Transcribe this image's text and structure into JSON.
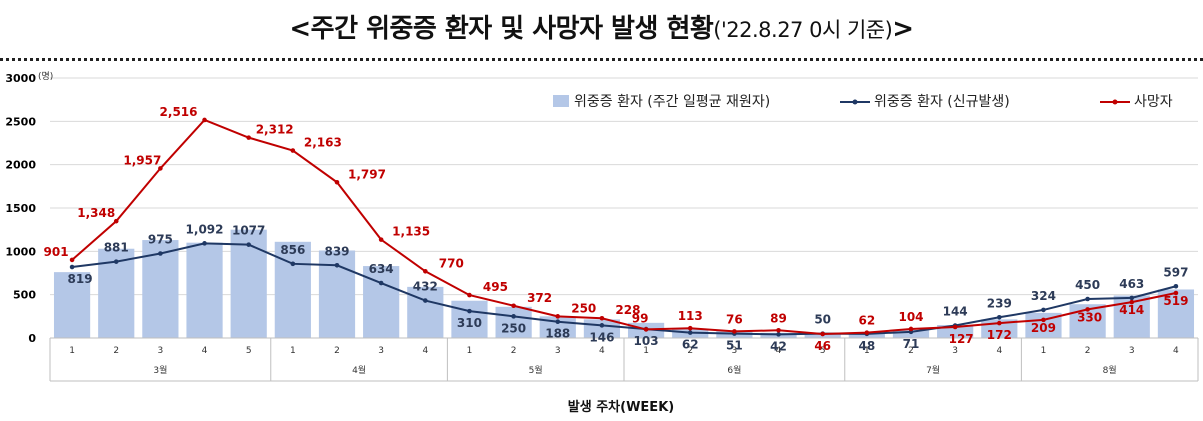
{
  "title": {
    "main": "<주간 위중증 환자 및 사망자 발생 현황",
    "sub": "('22.8.27 0시 기준)",
    "end": ">"
  },
  "colors": {
    "bars": "#b4c7e7",
    "severe_line": "#1f3864",
    "death_line": "#c00000"
  },
  "chart_data": {
    "type": "bar",
    "ylim": [
      0,
      3000
    ],
    "yticks": [
      0,
      500,
      1000,
      1500,
      2000,
      2500,
      3000
    ],
    "yunit": "(명)",
    "xlabel": "발생 주차(WEEK)",
    "grid": true,
    "legend_position": "top-right",
    "categories": [
      "1",
      "2",
      "3",
      "4",
      "5",
      "1",
      "2",
      "3",
      "4",
      "1",
      "2",
      "3",
      "4",
      "1",
      "2",
      "3",
      "4",
      "5",
      "1",
      "2",
      "3",
      "4",
      "1",
      "2",
      "3",
      "4"
    ],
    "month_groups": [
      {
        "label": "3월",
        "count": 5
      },
      {
        "label": "4월",
        "count": 4
      },
      {
        "label": "5월",
        "count": 4
      },
      {
        "label": "6월",
        "count": 5
      },
      {
        "label": "7월",
        "count": 4
      },
      {
        "label": "8월",
        "count": 4
      }
    ],
    "series": [
      {
        "name": "위중증 환자 (주간 일평균 재원자)",
        "type": "bar",
        "values": [
          760,
          1030,
          1130,
          1100,
          1250,
          1110,
          1010,
          830,
          590,
          430,
          360,
          250,
          215,
          175,
          100,
          80,
          60,
          50,
          50,
          90,
          150,
          215,
          290,
          390,
          490,
          560
        ]
      },
      {
        "name": "위중증 환자 (신규발생)",
        "type": "line",
        "values": [
          819,
          881,
          975,
          1092,
          1077,
          856,
          839,
          634,
          432,
          310,
          250,
          188,
          146,
          103,
          62,
          51,
          42,
          50,
          48,
          71,
          144,
          239,
          324,
          450,
          463,
          597
        ],
        "labels": [
          "819",
          "881",
          "975",
          "1,092",
          "1077",
          "856",
          "839",
          "634",
          "432",
          "310",
          "250",
          "188",
          "146",
          "103",
          "62",
          "51",
          "42",
          "50",
          "48",
          "71",
          "144",
          "239",
          "324",
          "450",
          "463",
          "597"
        ]
      },
      {
        "name": "사망자",
        "type": "line",
        "values": [
          901,
          1348,
          1957,
          2516,
          2312,
          2163,
          1797,
          1135,
          770,
          495,
          372,
          250,
          228,
          99,
          113,
          76,
          89,
          46,
          62,
          104,
          127,
          172,
          209,
          330,
          414,
          519
        ],
        "labels": [
          "901",
          "1,348",
          "1,957",
          "2,516",
          "2,312",
          "2,163",
          "1,797",
          "1,135",
          "770",
          "495",
          "372",
          "250",
          "228",
          "99",
          "113",
          "76",
          "89",
          "46",
          "62",
          "104",
          "127",
          "172",
          "209",
          "330",
          "414",
          "519"
        ]
      }
    ]
  }
}
